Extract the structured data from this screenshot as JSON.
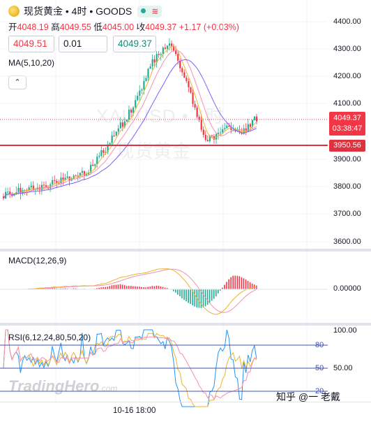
{
  "header": {
    "symbol": "现货黄金 • 4时 • GOODS",
    "status_icon": "green-dot-icon",
    "wave_icon": "≋",
    "ohlc": {
      "open_label": "开",
      "open": "4048.19",
      "high_label": "高",
      "high": "4049.55",
      "low_label": "低",
      "low": "4045.00",
      "close_label": "收",
      "close": "4049.37",
      "change": "+1.17 (+0.03%)"
    }
  },
  "trade": {
    "sell_price": "4049.51",
    "quantity": "0.01",
    "buy_price": "4049.37"
  },
  "indicators": {
    "ma_label": "MA(5,10,20)",
    "macd_label": "MACD(12,26,9)",
    "rsi_label": "RSI(6,12,24,80,50,20)",
    "collapse_icon": "chevron-up-icon"
  },
  "price_axis": {
    "ticks": [
      "4400.00",
      "4300.00",
      "4200.00",
      "4100.00",
      "3900.00",
      "3800.00",
      "3700.00",
      "3600.00"
    ],
    "last_price": "4049.37",
    "countdown": "03:38:47",
    "line_price": "3950.56"
  },
  "macd_axis": {
    "tick": "0.00000"
  },
  "rsi_axis": {
    "ticks": [
      "100.00",
      "50.00"
    ],
    "levels": [
      "80",
      "50",
      "20"
    ]
  },
  "time_axis": {
    "label": "10-16 18:00"
  },
  "watermark": {
    "symbol": "XAUUSD • 4时",
    "name": "现货黄金",
    "brand": "TradingHero",
    "brand_suffix": ".com",
    "source": "知乎 @一 老戴"
  },
  "colors": {
    "up": "#22ab94",
    "down": "#f23645",
    "ma5": "#e9b52b",
    "ma10": "#f48fb1",
    "ma20": "#7b61ff",
    "hline": "#e0313f",
    "rsi6": "#2196f3",
    "rsi12": "#e9b52b",
    "rsi24": "#f48fb1"
  }
}
